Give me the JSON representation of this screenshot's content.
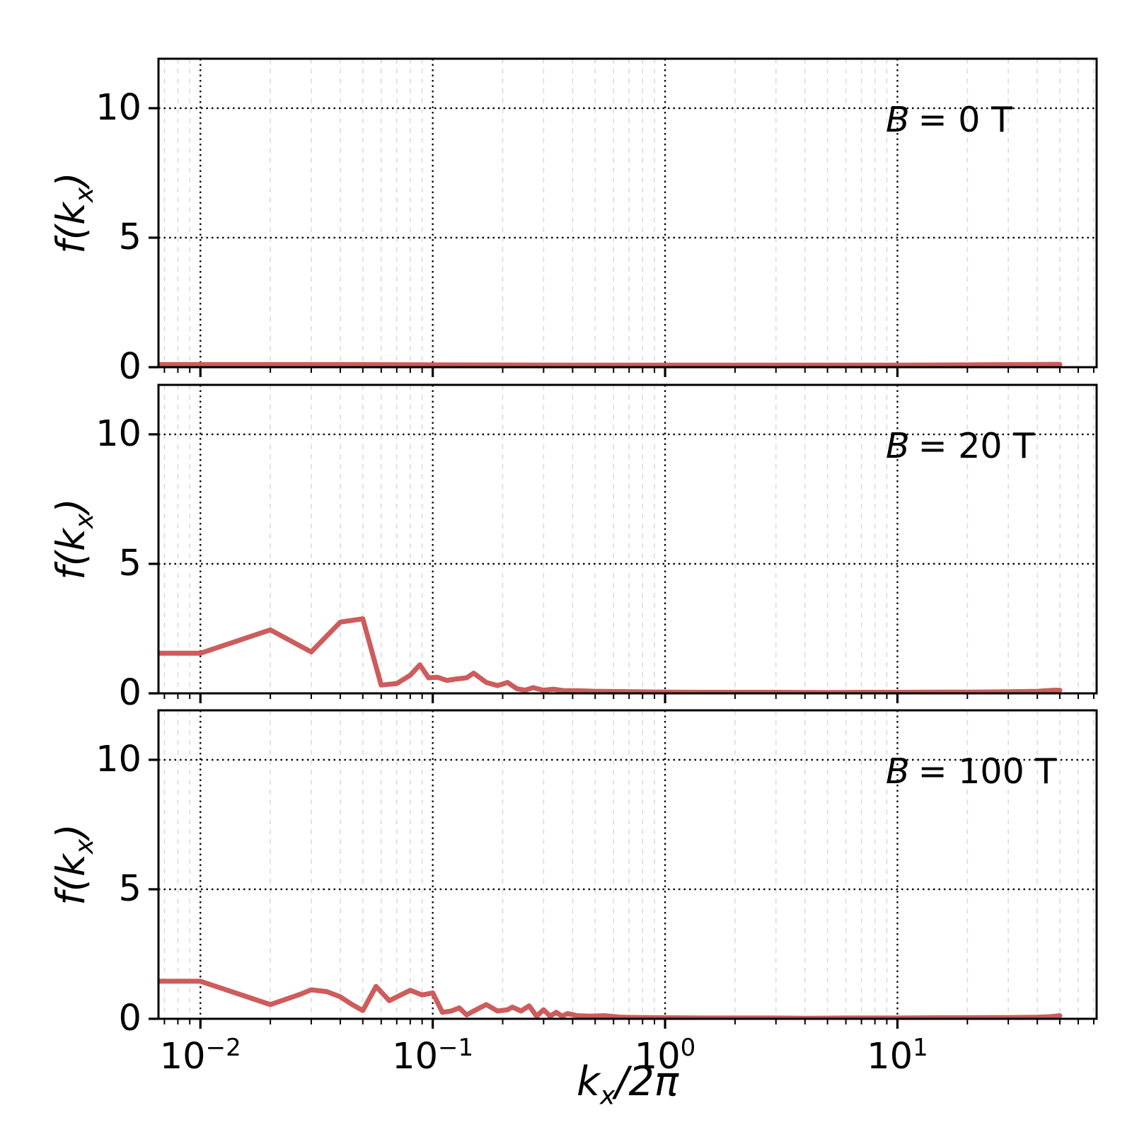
{
  "chart_data": {
    "type": "line",
    "xscale": "log",
    "xlim": [
      0.0066,
      72
    ],
    "ylim": [
      0,
      11.91
    ],
    "grid": true,
    "legend": "none",
    "line_color": "#cd5c5c",
    "major_grid_color": "#000000",
    "minor_grid_color": "#dcdcdc",
    "xlabel": "kx/2pi",
    "ylabel": "f(kx)",
    "xlabel_parts": {
      "k": "k",
      "sub": "x",
      "rest": "/2π"
    },
    "ylabel_parts": {
      "pre": "f(k",
      "sub": "x",
      "post": ")"
    },
    "xticks": {
      "base": "10",
      "exponents": [
        -2,
        -1,
        0,
        1
      ],
      "exp_labels": [
        "−2",
        "−1",
        "0",
        "1"
      ]
    },
    "yticks": [
      0,
      5,
      10
    ],
    "panels": [
      {
        "name": "B0",
        "annotation": {
          "symbol": "B",
          "rest": "= 0 T"
        },
        "series": {
          "color": "#cd5c5c",
          "points": [
            [
              0.0066,
              0.1
            ],
            [
              0.01,
              0.1
            ],
            [
              0.05,
              0.1
            ],
            [
              0.1,
              0.09
            ],
            [
              0.5,
              0.08
            ],
            [
              1,
              0.08
            ],
            [
              5,
              0.08
            ],
            [
              10,
              0.08
            ],
            [
              20,
              0.09
            ],
            [
              35,
              0.1
            ],
            [
              50,
              0.11
            ]
          ]
        }
      },
      {
        "name": "B20",
        "annotation": {
          "symbol": "B",
          "rest": "= 20 T"
        },
        "series": {
          "color": "#cd5c5c",
          "points": [
            [
              0.0066,
              1.55
            ],
            [
              0.01,
              1.55
            ],
            [
              0.02,
              2.45
            ],
            [
              0.03,
              1.6
            ],
            [
              0.04,
              2.75
            ],
            [
              0.05,
              2.88
            ],
            [
              0.06,
              0.32
            ],
            [
              0.07,
              0.38
            ],
            [
              0.08,
              0.7
            ],
            [
              0.088,
              1.1
            ],
            [
              0.096,
              0.6
            ],
            [
              0.105,
              0.62
            ],
            [
              0.115,
              0.5
            ],
            [
              0.125,
              0.55
            ],
            [
              0.14,
              0.6
            ],
            [
              0.15,
              0.78
            ],
            [
              0.17,
              0.42
            ],
            [
              0.19,
              0.3
            ],
            [
              0.21,
              0.42
            ],
            [
              0.23,
              0.18
            ],
            [
              0.25,
              0.12
            ],
            [
              0.27,
              0.22
            ],
            [
              0.3,
              0.12
            ],
            [
              0.33,
              0.16
            ],
            [
              0.37,
              0.1
            ],
            [
              0.42,
              0.1
            ],
            [
              0.5,
              0.08
            ],
            [
              0.6,
              0.07
            ],
            [
              0.75,
              0.06
            ],
            [
              1,
              0.05
            ],
            [
              1.5,
              0.04
            ],
            [
              2,
              0.04
            ],
            [
              3,
              0.04
            ],
            [
              5,
              0.03
            ],
            [
              7,
              0.04
            ],
            [
              10,
              0.04
            ],
            [
              15,
              0.05
            ],
            [
              20,
              0.05
            ],
            [
              30,
              0.06
            ],
            [
              40,
              0.08
            ],
            [
              47,
              0.12
            ],
            [
              50,
              0.12
            ]
          ]
        }
      },
      {
        "name": "B100",
        "annotation": {
          "symbol": "B",
          "rest": "= 100 T"
        },
        "series": {
          "color": "#cd5c5c",
          "points": [
            [
              0.0066,
              1.45
            ],
            [
              0.01,
              1.45
            ],
            [
              0.02,
              0.55
            ],
            [
              0.027,
              0.95
            ],
            [
              0.03,
              1.12
            ],
            [
              0.035,
              1.05
            ],
            [
              0.04,
              0.85
            ],
            [
              0.045,
              0.55
            ],
            [
              0.05,
              0.32
            ],
            [
              0.057,
              1.25
            ],
            [
              0.065,
              0.7
            ],
            [
              0.08,
              1.1
            ],
            [
              0.09,
              0.92
            ],
            [
              0.1,
              1.0
            ],
            [
              0.11,
              0.25
            ],
            [
              0.12,
              0.3
            ],
            [
              0.13,
              0.42
            ],
            [
              0.14,
              0.15
            ],
            [
              0.15,
              0.3
            ],
            [
              0.17,
              0.55
            ],
            [
              0.19,
              0.3
            ],
            [
              0.21,
              0.35
            ],
            [
              0.22,
              0.45
            ],
            [
              0.24,
              0.3
            ],
            [
              0.26,
              0.5
            ],
            [
              0.28,
              0.1
            ],
            [
              0.3,
              0.35
            ],
            [
              0.32,
              0.1
            ],
            [
              0.34,
              0.25
            ],
            [
              0.36,
              0.1
            ],
            [
              0.38,
              0.2
            ],
            [
              0.42,
              0.12
            ],
            [
              0.47,
              0.1
            ],
            [
              0.55,
              0.12
            ],
            [
              0.65,
              0.06
            ],
            [
              0.8,
              0.05
            ],
            [
              1,
              0.04
            ],
            [
              1.5,
              0.03
            ],
            [
              2,
              0.03
            ],
            [
              3,
              0.03
            ],
            [
              4,
              0.02
            ],
            [
              6,
              0.03
            ],
            [
              8,
              0.03
            ],
            [
              10,
              0.03
            ],
            [
              15,
              0.04
            ],
            [
              20,
              0.04
            ],
            [
              25,
              0.05
            ],
            [
              30,
              0.05
            ],
            [
              40,
              0.06
            ],
            [
              45,
              0.08
            ],
            [
              50,
              0.12
            ]
          ]
        }
      }
    ]
  }
}
